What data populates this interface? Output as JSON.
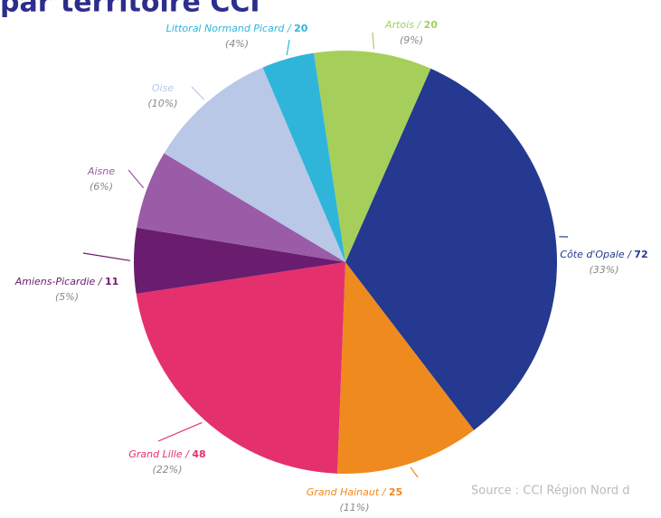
{
  "chart_data": {
    "type": "pie",
    "title": "par territoire CCI",
    "source": "Source : CCI Région Nord d",
    "label_separator": " / ",
    "categories": [
      "Artois",
      "Côte d'Opale",
      "Grand Hainaut",
      "Grand Lille",
      "Amiens-Picardie",
      "Aisne",
      "Oise",
      "Littoral Normand Picard"
    ],
    "counts": [
      20,
      72,
      25,
      48,
      11,
      null,
      null,
      20
    ],
    "values": [
      9,
      33,
      11,
      22,
      5,
      6,
      10,
      4
    ],
    "value_labels": [
      "(9%)",
      "(33%)",
      "(11%)",
      "(22%)",
      "(5%)",
      "(6%)",
      "(10%)",
      "(4%)"
    ],
    "colors": [
      "#a5cf5a",
      "#24398f",
      "#ef8a1e",
      "#e5306e",
      "#6a1d6e",
      "#9a5ca6",
      "#b8c8e6",
      "#2fb5da"
    ]
  }
}
